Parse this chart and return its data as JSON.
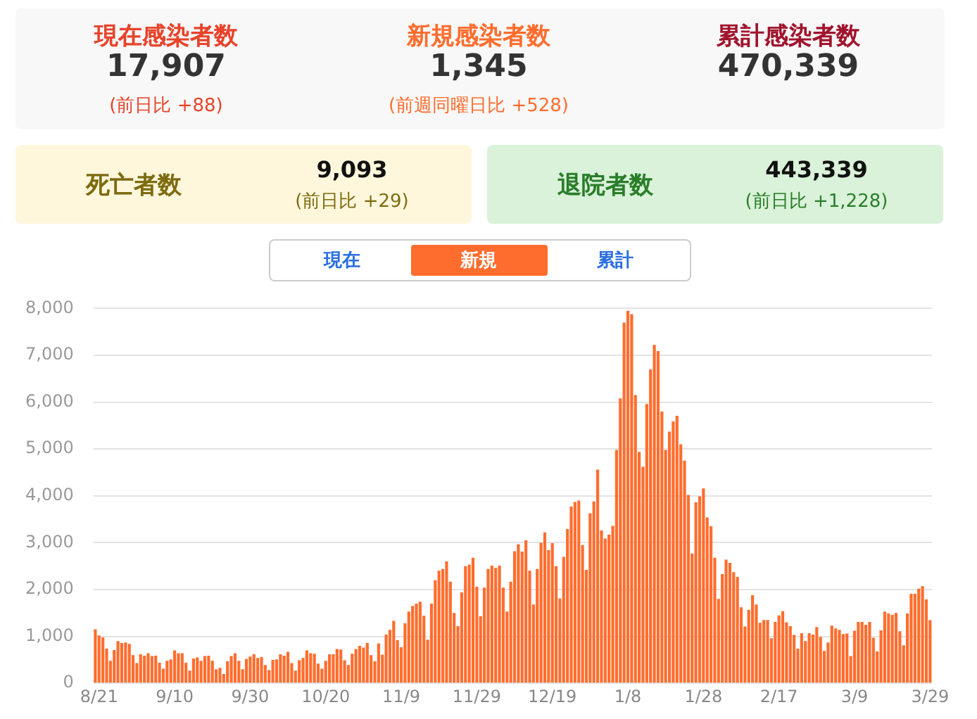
{
  "chart_data": [
    {
      "type": "other",
      "annotations": [
        "現在感染者数",
        "17,907",
        "(前日比 +88)",
        "新規感染者数",
        "1,345",
        "(前週同曜日比 +528)",
        "累計感染者数",
        "470,339",
        "死亡者数",
        "9,093",
        "(前日比 +29)",
        "退院者数",
        "443,339",
        "(前日比 +1,228)",
        "現在",
        "新規",
        "累計"
      ]
    },
    {
      "type": "bar",
      "color": "#ff6d2e",
      "grid": "y",
      "legend": false,
      "categories": [
        null,
        "8/21",
        null,
        null,
        null,
        null,
        null,
        null,
        null,
        null,
        null,
        null,
        null,
        null,
        null,
        null,
        null,
        null,
        null,
        null,
        null,
        "9/10",
        null,
        null,
        null,
        null,
        null,
        null,
        null,
        null,
        null,
        null,
        null,
        null,
        null,
        null,
        null,
        null,
        null,
        null,
        null,
        "9/30",
        null,
        null,
        null,
        null,
        null,
        null,
        null,
        null,
        null,
        null,
        null,
        null,
        null,
        null,
        null,
        null,
        null,
        null,
        null,
        "10/20",
        null,
        null,
        null,
        null,
        null,
        null,
        null,
        null,
        null,
        null,
        null,
        null,
        null,
        null,
        null,
        null,
        null,
        null,
        null,
        "11/9",
        null,
        null,
        null,
        null,
        null,
        null,
        null,
        null,
        null,
        null,
        null,
        null,
        null,
        null,
        null,
        null,
        null,
        null,
        null,
        "11/29",
        null,
        null,
        null,
        null,
        null,
        null,
        null,
        null,
        null,
        null,
        null,
        null,
        null,
        null,
        null,
        null,
        null,
        null,
        null,
        "12/19",
        null,
        null,
        null,
        null,
        null,
        null,
        null,
        null,
        null,
        null,
        null,
        null,
        null,
        null,
        null,
        null,
        null,
        null,
        null,
        "1/8",
        null,
        null,
        null,
        null,
        null,
        null,
        null,
        null,
        null,
        null,
        null,
        null,
        null,
        null,
        null,
        null,
        null,
        null,
        null,
        "1/28",
        null,
        null,
        null,
        null,
        null,
        null,
        null,
        null,
        null,
        null,
        null,
        null,
        null,
        null,
        null,
        null,
        null,
        null,
        null,
        "2/17",
        null,
        null,
        null,
        null,
        null,
        null,
        null,
        null,
        null,
        null,
        null,
        null,
        null,
        null,
        null,
        null,
        null,
        null,
        null,
        "3/9",
        null,
        null,
        null,
        null,
        null,
        null,
        null,
        null,
        null,
        null,
        null,
        null,
        null,
        null,
        null,
        null,
        null,
        null,
        null,
        "3/29"
      ],
      "values": [
        1150,
        1020,
        980,
        740,
        480,
        710,
        900,
        860,
        870,
        840,
        600,
        430,
        620,
        590,
        640,
        580,
        590,
        440,
        310,
        480,
        510,
        700,
        640,
        640,
        440,
        270,
        530,
        550,
        480,
        580,
        590,
        480,
        300,
        330,
        200,
        470,
        580,
        640,
        480,
        300,
        520,
        570,
        620,
        540,
        560,
        390,
        280,
        500,
        510,
        620,
        590,
        670,
        430,
        270,
        490,
        540,
        700,
        640,
        630,
        420,
        310,
        480,
        620,
        620,
        730,
        720,
        490,
        390,
        630,
        730,
        800,
        760,
        860,
        600,
        470,
        850,
        610,
        1040,
        1140,
        1330,
        920,
        770,
        1280,
        1530,
        1650,
        1700,
        1740,
        1440,
        930,
        1700,
        2200,
        2400,
        2440,
        2600,
        2170,
        1500,
        1220,
        1940,
        2500,
        2530,
        2680,
        2060,
        1430,
        2040,
        2440,
        2510,
        2460,
        2510,
        2040,
        1530,
        2170,
        2820,
        2970,
        2810,
        3050,
        2400,
        1680,
        2440,
        3000,
        3220,
        2840,
        2990,
        2500,
        1810,
        2700,
        3290,
        3770,
        3870,
        3900,
        2950,
        2420,
        3630,
        3880,
        4560,
        3260,
        3090,
        3170,
        3360,
        4980,
        6080,
        7700,
        7950,
        7880,
        6150,
        4940,
        4620,
        5960,
        6700,
        7220,
        7090,
        5800,
        4980,
        5370,
        5590,
        5710,
        5100,
        4750,
        4020,
        2770,
        3860,
        3990,
        4160,
        3540,
        3350,
        2680,
        1800,
        2330,
        2640,
        2570,
        2370,
        2270,
        1620,
        1210,
        1570,
        1880,
        1680,
        1290,
        1350,
        1350,
        960,
        1310,
        1450,
        1540,
        1300,
        1220,
        1030,
        740,
        1070,
        900,
        1070,
        1040,
        1200,
        990,
        690,
        870,
        1230,
        1170,
        1140,
        1050,
        1060,
        580,
        1120,
        1310,
        1310,
        1250,
        1310,
        970,
        680,
        1130,
        1530,
        1490,
        1460,
        1500,
        1110,
        810,
        1490,
        1910,
        1910,
        2020,
        2070,
        1790,
        1345
      ],
      "ylim": [
        0,
        8000
      ],
      "yticks": [
        0,
        {
          "value": 1000,
          "label": "1,000"
        },
        {
          "value": 2000,
          "label": "2,000"
        },
        {
          "value": 3000,
          "label": "3,000"
        },
        {
          "value": 4000,
          "label": "4,000"
        },
        {
          "value": 5000,
          "label": "5,000"
        },
        {
          "value": 6000,
          "label": "6,000"
        },
        {
          "value": 7000,
          "label": "7,000"
        },
        {
          "value": 8000,
          "label": "8,000"
        }
      ]
    }
  ]
}
